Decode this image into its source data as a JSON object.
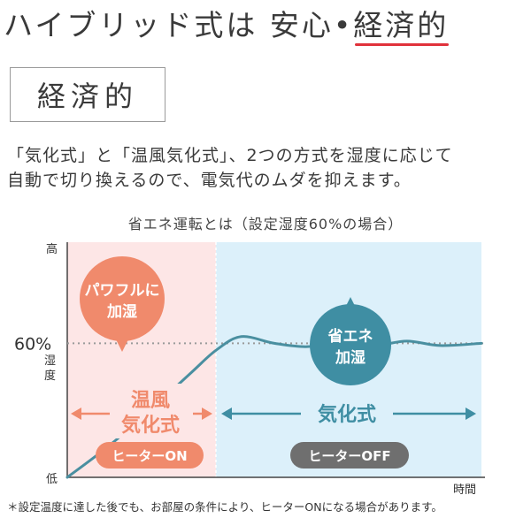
{
  "headline": {
    "prefix": "ハイブリッド式は 安心•",
    "emphasis": "経済的"
  },
  "section": {
    "label": "経済的"
  },
  "description": [
    "「気化式」と「温風気化式」、2つの方式を湿度に応じて",
    "自動で切り換えるので、電気代のムダを抑えます。"
  ],
  "chart_data": {
    "type": "line",
    "title": "省エネ運転とは（設定湿度60%の場合）",
    "ylabel": "湿度",
    "xlabel": "時間",
    "y_axis": {
      "top_label": "高",
      "bottom_label": "低",
      "target_label": "60%",
      "target_percent": 60
    },
    "phases": [
      {
        "name": "温風気化式",
        "heater": "ヒーターON",
        "bubble": [
          "パワフルに",
          "加湿"
        ],
        "color": "#f08a6c",
        "bg": "#fde6e6"
      },
      {
        "name": "気化式",
        "heater": "ヒーターOFF",
        "bubble": [
          "省エネ",
          "加湿"
        ],
        "color": "#3f8ea3",
        "bg": "#dcf0fa"
      }
    ],
    "series": [
      {
        "x": [
          0,
          0.1,
          0.2,
          0.3,
          0.36,
          0.42,
          0.5,
          0.58,
          0.66,
          0.74,
          0.82,
          0.9,
          1.0
        ],
        "y": [
          0,
          14,
          30,
          47,
          57,
          63,
          60,
          58.5,
          61,
          59,
          61,
          59,
          60
        ]
      }
    ],
    "line_color": "#4a8fa0"
  },
  "footnote": "＊設定温度に達した後でも、お部屋の条件により、ヒーターONになる場合があります。"
}
